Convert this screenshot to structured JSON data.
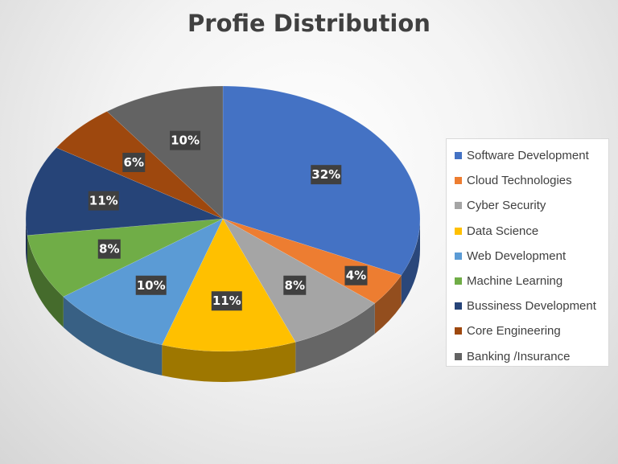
{
  "chart_data": {
    "type": "pie",
    "title": "Profie Distribution",
    "categories": [
      "Software Development",
      "Cloud Technologies",
      "Cyber Security",
      "Data Science",
      "Web Development",
      "Machine Learning",
      "Bussiness Development",
      "Core Engineering",
      "Banking /Insurance"
    ],
    "values": [
      32,
      4,
      8,
      11,
      10,
      8,
      11,
      6,
      10
    ],
    "labels": [
      "32%",
      "4%",
      "8%",
      "11%",
      "10%",
      "8%",
      "11%",
      "6%",
      "10%"
    ],
    "colors": [
      "#4472C4",
      "#ED7D31",
      "#A5A5A5",
      "#FFC000",
      "#5B9BD5",
      "#70AD47",
      "#264478",
      "#9E480E",
      "#636363"
    ],
    "legend_position": "right",
    "style": "3d"
  }
}
